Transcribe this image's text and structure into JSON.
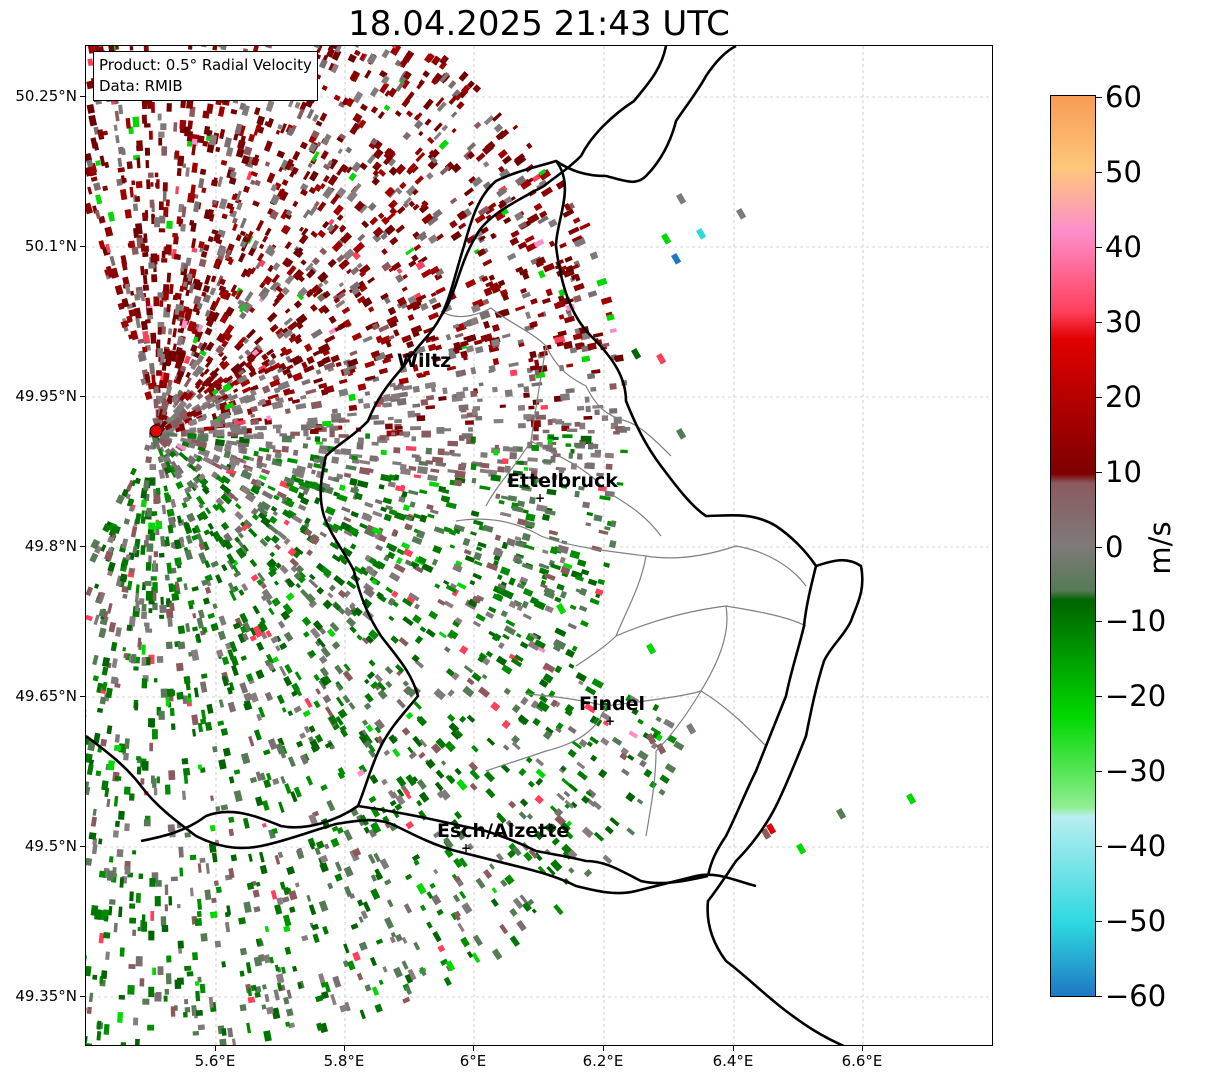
{
  "title": "18.04.2025 21:43 UTC",
  "info": {
    "product": "Product: 0.5° Radial Velocity",
    "data": "Data: RMIB"
  },
  "lat_ticks": [
    "50.25°N",
    "50.1°N",
    "49.95°N",
    "49.8°N",
    "49.65°N",
    "49.5°N",
    "49.35°N"
  ],
  "lon_ticks": [
    "5.6°E",
    "5.8°E",
    "6°E",
    "6.2°E",
    "6.4°E",
    "6.6°E"
  ],
  "cities": [
    {
      "name": "Wiltz"
    },
    {
      "name": "Ettelbruck"
    },
    {
      "name": "Findel"
    },
    {
      "name": "Esch/Alzette"
    }
  ],
  "colorbar": {
    "label": "m/s",
    "ticks": [
      "60",
      "50",
      "40",
      "30",
      "20",
      "10",
      "0",
      "−10",
      "−20",
      "−30",
      "−40",
      "−50",
      "−60"
    ],
    "colors": {
      "pos_high": "#f89b55",
      "pos_orange": "#fdc77a",
      "pos_pink": "#fc8fca",
      "pos_red": "#ff3f5c",
      "pos_strong_red": "#e20000",
      "pos_dark_red": "#7e0000",
      "zero_brown": "#8b5a5e",
      "zero_grey": "#7f7a7a",
      "neg_grey_green": "#557a55",
      "neg_dark_green": "#006400",
      "neg_green": "#00d800",
      "neg_light_green": "#90ee90",
      "neg_light_cyan": "#b8eef0",
      "neg_cyan": "#2dd8e0",
      "neg_blue": "#1f78c4"
    }
  },
  "radar_site_color": "#e00000"
}
